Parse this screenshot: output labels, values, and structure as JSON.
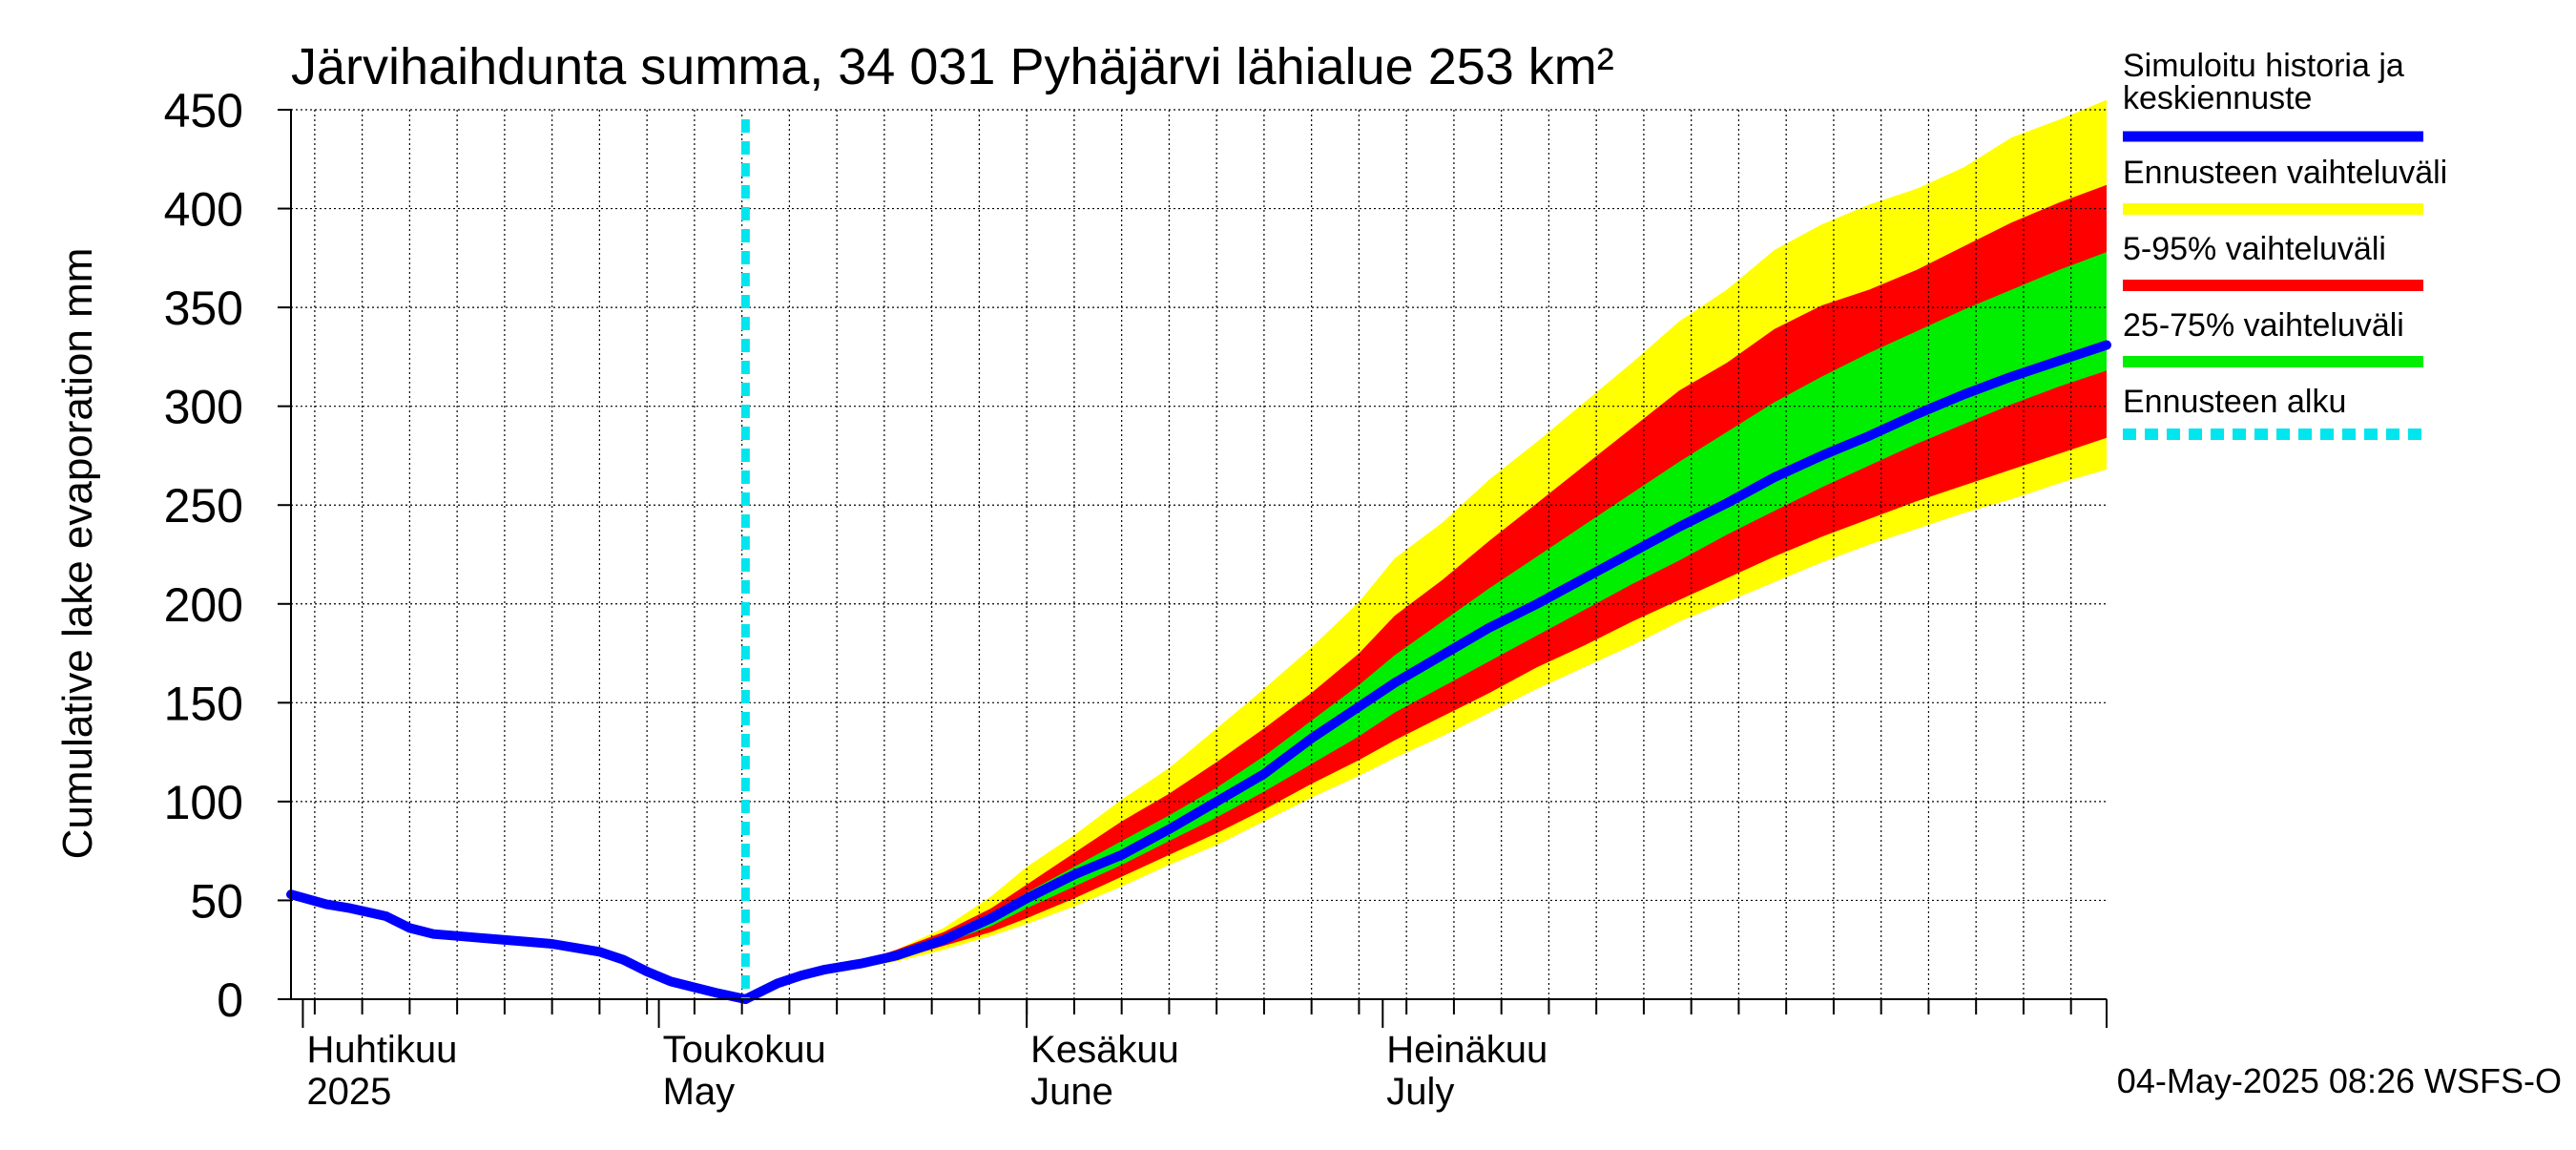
{
  "chart_data": {
    "type": "area",
    "title": "Järvihaihdunta summa, 34 031 Pyhäjärvi lähialue 253 km²",
    "ylabel": "Cumulative lake evaporation   mm",
    "xlabel": "",
    "ylim": [
      0,
      450
    ],
    "yticks": [
      "0",
      "50",
      "100",
      "150",
      "200",
      "250",
      "300",
      "350",
      "400",
      "450"
    ],
    "x_unit": "day of year 2025",
    "xlim": [
      90,
      243
    ],
    "grid": true,
    "month_labels": [
      {
        "fi": "Huhtikuu",
        "en": "2025",
        "day": 91
      },
      {
        "fi": "Toukokuu",
        "en": "May",
        "day": 121
      },
      {
        "fi": "Kesäkuu",
        "en": "June",
        "day": 152
      },
      {
        "fi": "Heinäkuu",
        "en": "July",
        "day": 182
      }
    ],
    "forecast_start_day": 128.3,
    "history": {
      "name": "Simuloitu historia ja keskiennuste",
      "x": [
        90,
        93,
        95,
        98,
        100,
        102,
        104,
        106,
        108,
        110,
        112,
        114,
        116,
        118,
        120,
        122,
        124,
        126,
        128.3
      ],
      "y": [
        53,
        48,
        46,
        42,
        36,
        33,
        32,
        31,
        30,
        29,
        28,
        26,
        24,
        20,
        14,
        9,
        6,
        3,
        0
      ]
    },
    "median_forecast": {
      "name": "Simuloitu historia ja keskiennuste",
      "x": [
        128.3,
        131,
        133,
        135,
        138,
        141,
        145,
        149,
        152,
        156,
        160,
        164,
        168,
        172,
        176,
        180,
        183,
        187,
        191,
        195,
        199,
        203,
        207,
        211,
        215,
        219,
        223,
        227,
        231,
        235,
        239,
        243
      ],
      "y": [
        0,
        8,
        12,
        15,
        18,
        22,
        30,
        41,
        51,
        63,
        73,
        86,
        100,
        114,
        132,
        148,
        160,
        174,
        188,
        200,
        213,
        226,
        239,
        251,
        264,
        275,
        285,
        296,
        306,
        315,
        323,
        331
      ]
    },
    "bands": [
      {
        "name": "Ennusteen vaihteluväli",
        "color": "#ffff00",
        "x": [
          128.3,
          133,
          138,
          141,
          145,
          149,
          152,
          156,
          160,
          164,
          168,
          172,
          176,
          180,
          183,
          187,
          191,
          195,
          199,
          203,
          207,
          211,
          215,
          219,
          223,
          227,
          231,
          235,
          239,
          243
        ],
        "upper": [
          0,
          12,
          19,
          25,
          36,
          52,
          67,
          83,
          101,
          117,
          137,
          157,
          178,
          201,
          223,
          241,
          263,
          282,
          302,
          322,
          343,
          359,
          379,
          392,
          402,
          410,
          421,
          436,
          445,
          455
        ],
        "lower": [
          0,
          12,
          16,
          19,
          25,
          32,
          38,
          47,
          57,
          68,
          78,
          90,
          102,
          113,
          122,
          133,
          145,
          157,
          168,
          179,
          191,
          201,
          211,
          221,
          230,
          238,
          246,
          253,
          261,
          268
        ]
      },
      {
        "name": "5-95% vaihteluväli",
        "color": "#ff0000",
        "x": [
          128.3,
          133,
          138,
          141,
          145,
          149,
          152,
          156,
          160,
          164,
          168,
          172,
          176,
          180,
          183,
          187,
          191,
          195,
          199,
          203,
          207,
          211,
          215,
          219,
          223,
          227,
          231,
          235,
          239,
          243
        ],
        "upper": [
          0,
          12,
          19,
          25,
          34,
          46,
          58,
          74,
          90,
          104,
          120,
          137,
          155,
          175,
          194,
          212,
          232,
          251,
          270,
          289,
          308,
          322,
          339,
          351,
          359,
          369,
          381,
          393,
          403,
          412
        ],
        "lower": [
          0,
          12,
          16,
          20,
          27,
          34,
          41,
          51,
          62,
          73,
          84,
          96,
          109,
          121,
          131,
          143,
          155,
          168,
          179,
          191,
          202,
          213,
          224,
          234,
          243,
          252,
          260,
          268,
          276,
          284
        ]
      },
      {
        "name": "25-75% vaihteluväli",
        "color": "#00ee00",
        "x": [
          128.3,
          133,
          138,
          141,
          145,
          149,
          152,
          156,
          160,
          164,
          168,
          172,
          176,
          180,
          183,
          187,
          191,
          195,
          199,
          203,
          207,
          211,
          215,
          219,
          223,
          227,
          231,
          235,
          239,
          243
        ],
        "upper": [
          0,
          12,
          18,
          23,
          32,
          43,
          54,
          67,
          80,
          93,
          107,
          123,
          141,
          159,
          174,
          191,
          208,
          224,
          240,
          256,
          272,
          287,
          302,
          315,
          327,
          338,
          349,
          359,
          369,
          378
        ],
        "lower": [
          0,
          12,
          17,
          21,
          28,
          37,
          46,
          57,
          68,
          80,
          92,
          105,
          119,
          133,
          145,
          158,
          171,
          184,
          197,
          210,
          222,
          235,
          247,
          259,
          270,
          281,
          291,
          301,
          310,
          318
        ]
      }
    ],
    "legend": [
      {
        "label": "Simuloitu historia ja keskiennuste",
        "color": "#0000ff",
        "style": "solid"
      },
      {
        "label": "Ennusteen vaihteluväli",
        "color": "#ffff00",
        "style": "solid"
      },
      {
        "label": "5-95% vaihteluväli",
        "color": "#ff0000",
        "style": "solid"
      },
      {
        "label": "25-75% vaihteluväli",
        "color": "#00ee00",
        "style": "solid"
      },
      {
        "label": "Ennusteen alku",
        "color": "#00e5ee",
        "style": "dashed"
      }
    ],
    "legend_position": "right",
    "footer": "04-May-2025 08:26 WSFS-O"
  }
}
